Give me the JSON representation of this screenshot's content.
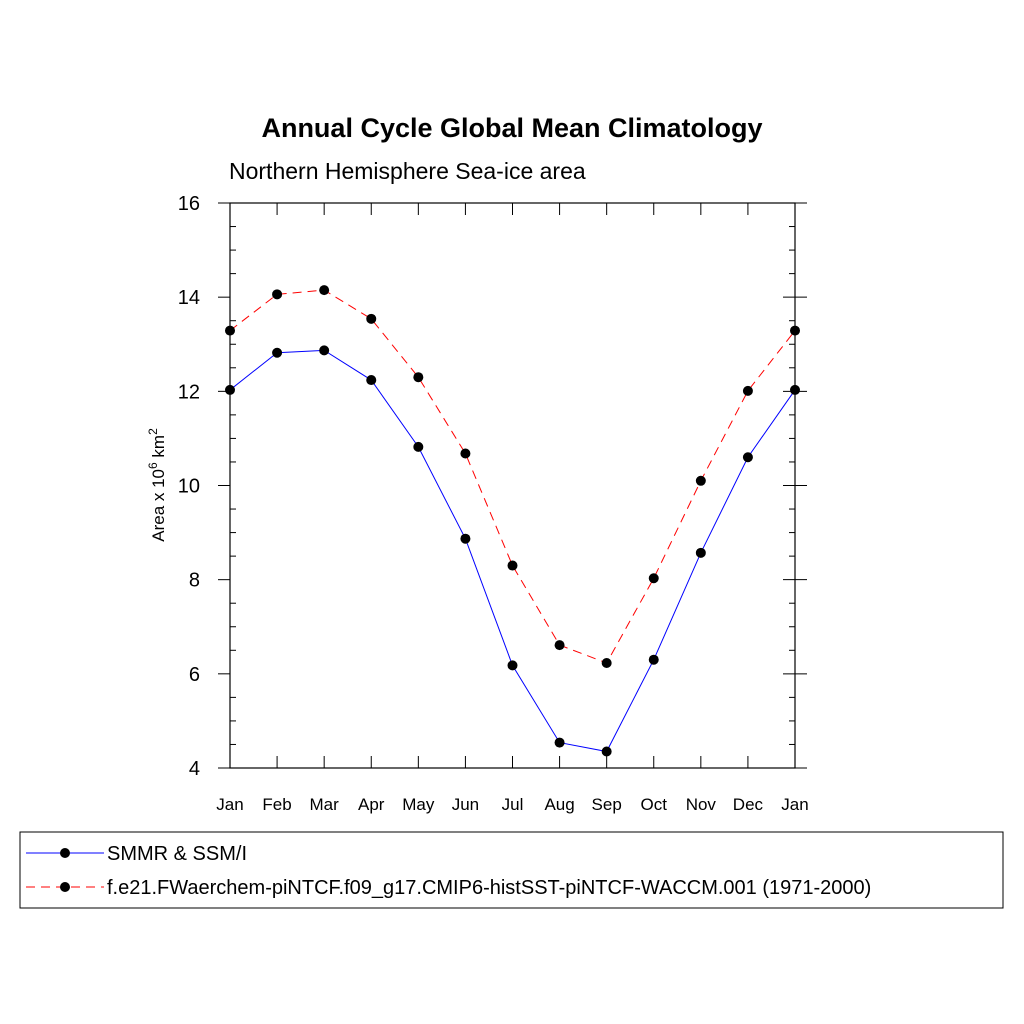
{
  "chart_data": {
    "type": "line",
    "title": "Annual Cycle Global Mean Climatology",
    "subtitle": "Northern Hemisphere Sea-ice area",
    "ylabel_prefix": "Area x 10",
    "ylabel_exp": "6",
    "ylabel_unit": " km",
    "ylabel_unit_exp": "2",
    "xlabel": "",
    "categories": [
      "Jan",
      "Feb",
      "Mar",
      "Apr",
      "May",
      "Jun",
      "Jul",
      "Aug",
      "Sep",
      "Oct",
      "Nov",
      "Dec",
      "Jan"
    ],
    "ylim": [
      4,
      16
    ],
    "yticks": [
      "4",
      "6",
      "8",
      "10",
      "12",
      "14",
      "16"
    ],
    "grid": false,
    "legend_position": "bottom",
    "series": [
      {
        "name": "SMMR & SSM/I",
        "color": "#0000ff",
        "dash": "solid",
        "values": [
          12.03,
          12.82,
          12.87,
          12.24,
          10.82,
          8.87,
          6.18,
          4.54,
          4.35,
          6.3,
          8.57,
          10.6,
          12.03
        ]
      },
      {
        "name": "f.e21.FWaerchem-piNTCF.f09_g17.CMIP6-histSST-piNTCF-WACCM.001 (1971-2000)",
        "color": "#ff0000",
        "dash": "dashed",
        "values": [
          13.29,
          14.06,
          14.15,
          13.54,
          12.3,
          10.68,
          8.3,
          6.61,
          6.23,
          8.03,
          10.1,
          12.01,
          13.29
        ]
      }
    ]
  }
}
